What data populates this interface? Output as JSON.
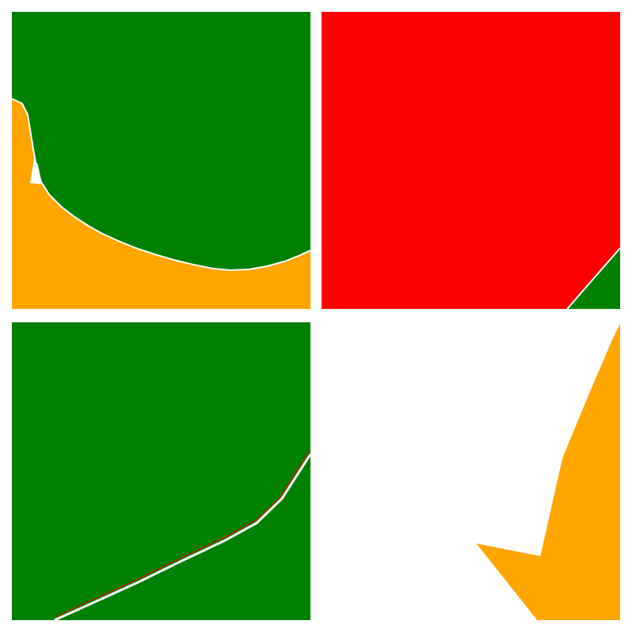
{
  "colors": {
    "background": "#ffffff",
    "green": "#008000",
    "red": "#ff0000",
    "orange": "#ffa500",
    "white": "#ffffff"
  },
  "panels": [
    {
      "id": "top-left",
      "description_colors": [
        "green",
        "orange"
      ]
    },
    {
      "id": "top-right",
      "description_colors": [
        "red",
        "green"
      ]
    },
    {
      "id": "bottom-left",
      "description_colors": [
        "green",
        "white"
      ]
    },
    {
      "id": "bottom-right",
      "description_colors": [
        "white",
        "orange"
      ]
    }
  ]
}
